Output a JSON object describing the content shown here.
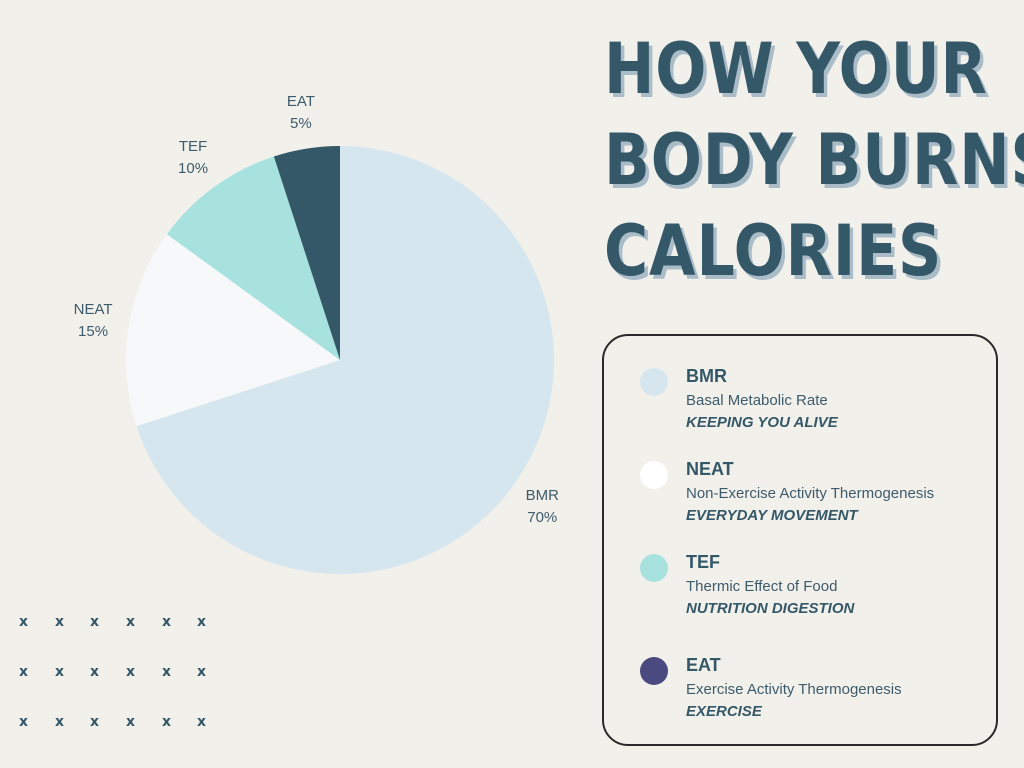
{
  "title_lines": [
    "HOW YOUR",
    "BODY BURNS",
    "CALORIES"
  ],
  "chart_data": {
    "type": "pie",
    "categories": [
      "BMR",
      "NEAT",
      "TEF",
      "EAT"
    ],
    "values": [
      70,
      15,
      10,
      5
    ],
    "labels": [
      "70%",
      "15%",
      "10%",
      "5%"
    ],
    "colors": [
      "#d6e6ef",
      "#f7f8fa",
      "#a8e2df",
      "#345868"
    ],
    "start": "top",
    "direction": "clockwise"
  },
  "legend": [
    {
      "abbr": "BMR",
      "full": "Basal Metabolic Rate",
      "note": "KEEPING YOU ALIVE",
      "color": "#d6e6ef"
    },
    {
      "abbr": "NEAT",
      "full": "Non-Exercise Activity Thermogenesis",
      "note": "EVERYDAY MOVEMENT",
      "color": "#ffffff"
    },
    {
      "abbr": "TEF",
      "full": "Thermic Effect of Food",
      "note": "NUTRITION DIGESTION",
      "color": "#a8e2df"
    },
    {
      "abbr": "EAT",
      "full": "Exercise Activity Thermogenesis",
      "note": "EXERCISE",
      "color": "#4a4a80"
    }
  ],
  "decoration": {
    "mark": "x",
    "rows": 3,
    "cols": 6
  }
}
